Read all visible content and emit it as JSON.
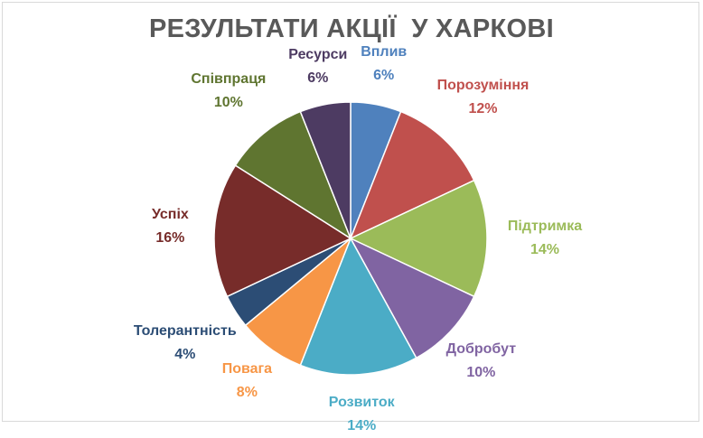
{
  "chart_data": {
    "type": "pie",
    "title": "РЕЗУЛЬТАТИ АКЦІЇ  У ХАРКОВІ",
    "slices": [
      {
        "name": "Вплив",
        "pct_label": "6%",
        "value": 6,
        "color": "#4f81bd",
        "text_color": "#4f81bd"
      },
      {
        "name": "Порозуміння",
        "pct_label": "12%",
        "value": 12,
        "color": "#c0504d",
        "text_color": "#c0504d"
      },
      {
        "name": "Підтримка",
        "pct_label": "14%",
        "value": 14,
        "color": "#9bbb59",
        "text_color": "#9bbb59"
      },
      {
        "name": "Добробут",
        "pct_label": "10%",
        "value": 10,
        "color": "#8064a2",
        "text_color": "#8064a2"
      },
      {
        "name": "Розвиток",
        "pct_label": "14%",
        "value": 14,
        "color": "#4bacc6",
        "text_color": "#4bacc6"
      },
      {
        "name": "Повага",
        "pct_label": "8%",
        "value": 8,
        "color": "#f79646",
        "text_color": "#f79646"
      },
      {
        "name": "Толерантність",
        "pct_label": "4%",
        "value": 4,
        "color": "#2c4d75",
        "text_color": "#2c4d75"
      },
      {
        "name": "Успіх",
        "pct_label": "16%",
        "value": 16,
        "color": "#772c2a",
        "text_color": "#772c2a"
      },
      {
        "name": "Співпраця",
        "pct_label": "10%",
        "value": 10,
        "color": "#5f7530",
        "text_color": "#5f7530"
      },
      {
        "name": "Ресурси",
        "pct_label": "6%",
        "value": 6,
        "color": "#4d3b62",
        "text_color": "#4d3b62"
      }
    ]
  }
}
